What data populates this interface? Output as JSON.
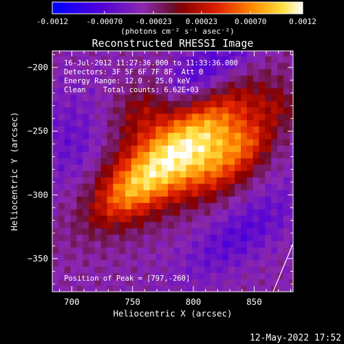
{
  "chart_data": {
    "type": "heatmap",
    "title": "Reconstructed RHESSI Image",
    "xlabel": "Heliocentric X (arcsec)",
    "ylabel": "Heliocentric Y (arcsec)",
    "xlim": [
      684,
      882
    ],
    "ylim": [
      -376,
      -187
    ],
    "xticks": [
      700,
      750,
      800,
      850
    ],
    "yticks": [
      -200,
      -250,
      -300,
      -350
    ],
    "colorbar": {
      "range": [
        -0.0012,
        0.0012
      ],
      "ticks": [
        "-0.0012",
        "-0.00070",
        "-0.00023",
        "0.00023",
        "0.00070",
        "0.0012"
      ],
      "unit_label": "(photons cm⁻² s⁻¹ asec⁻²)"
    },
    "annotations": {
      "time_range": "16-Jul-2012 11:27:36.000 to 11:33:36.000",
      "detectors": "Detectors: 3F 5F 6F 7F 8F, Att 0",
      "energy_range": "Energy Range: 12.0 - 25.0 keV",
      "clean": "Clean    Total counts: 6.62E+03",
      "peak": "Position of Peak = [797,-260]"
    },
    "peak": {
      "x": 797,
      "y": -260
    },
    "plot_date": "12-May-2022 17:52"
  }
}
